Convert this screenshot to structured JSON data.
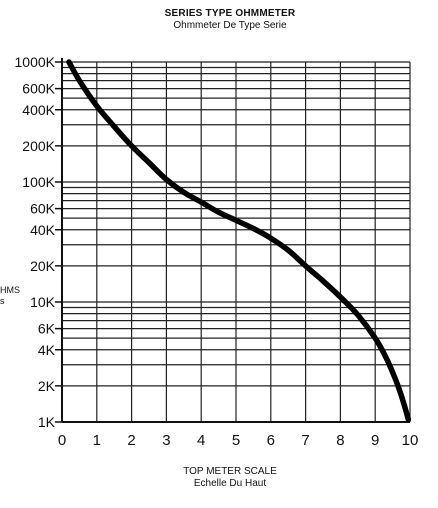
{
  "title": {
    "main": "SERIES TYPE OHMMETER",
    "sub": "Ohmmeter De Type Serie"
  },
  "y_caption": {
    "line1": "HMS",
    "line2": "s"
  },
  "x_caption": {
    "main": "TOP METER SCALE",
    "sub": "Echelle Du Haut"
  },
  "chart_data": {
    "type": "line",
    "title": "SERIES TYPE OHMMETER",
    "subtitle": "Ohmmeter De Type Serie",
    "xlabel": "TOP METER SCALE",
    "xlabel_sub": "Echelle Du Haut",
    "ylabel": "",
    "xlim": [
      0,
      10
    ],
    "ylim": [
      1000,
      1000000
    ],
    "y_scale": "log",
    "grid": true,
    "x_ticks": [
      0,
      1,
      2,
      3,
      4,
      5,
      6,
      7,
      8,
      9,
      10
    ],
    "x_tick_labels": [
      "0",
      "1",
      "2",
      "3",
      "4",
      "5",
      "6",
      "7",
      "8",
      "9",
      "10"
    ],
    "y_ticks": [
      1000,
      2000,
      4000,
      6000,
      10000,
      20000,
      40000,
      60000,
      100000,
      200000,
      400000,
      600000,
      1000000
    ],
    "y_tick_labels": [
      "1K",
      "2K",
      "4K",
      "6K",
      "10K",
      "20K",
      "40K",
      "60K",
      "100K",
      "200K",
      "400K",
      "600K",
      "1000K"
    ],
    "y_grid": [
      1000,
      2000,
      3000,
      4000,
      5000,
      6000,
      7000,
      8000,
      9000,
      10000,
      20000,
      30000,
      40000,
      50000,
      60000,
      70000,
      80000,
      90000,
      100000,
      200000,
      300000,
      400000,
      500000,
      600000,
      700000,
      800000,
      900000,
      1000000
    ],
    "series": [
      {
        "x": [
          0.2,
          0.5,
          1.0,
          1.5,
          2.0,
          2.5,
          3.0,
          3.5,
          4.0,
          4.5,
          5.0,
          5.5,
          6.0,
          6.5,
          7.0,
          7.5,
          8.0,
          8.5,
          9.0,
          9.3,
          9.6,
          9.8,
          9.95
        ],
        "y": [
          1000000,
          700000,
          430000,
          290000,
          200000,
          145000,
          105000,
          82000,
          68000,
          56000,
          48000,
          41000,
          34000,
          27000,
          20000,
          15000,
          11000,
          7800,
          5000,
          3500,
          2200,
          1500,
          1050
        ]
      }
    ]
  }
}
